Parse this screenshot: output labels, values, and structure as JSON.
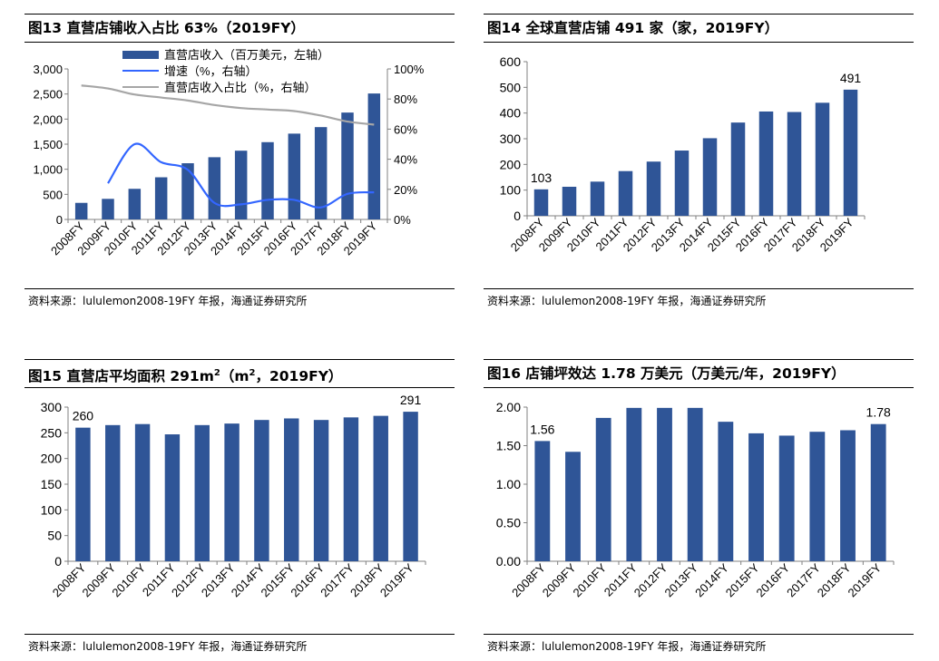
{
  "panels": [
    {
      "title": "图13 直营店铺收入占比 63%（2019FY）",
      "source": "资料来源：lululemon2008-19FY 年报，海通证券研究所",
      "chart_data": {
        "type": "bar+line",
        "categories": [
          "2008FY",
          "2009FY",
          "2010FY",
          "2011FY",
          "2012FY",
          "2013FY",
          "2014FY",
          "2015FY",
          "2016FY",
          "2017FY",
          "2018FY",
          "2019FY"
        ],
        "bars": {
          "name": "直营店收入（百万美元，左轴）",
          "color": "#2F5597",
          "values": [
            330,
            410,
            610,
            840,
            1120,
            1240,
            1370,
            1540,
            1710,
            1840,
            2130,
            2510
          ]
        },
        "lines": [
          {
            "name": "增速（%，右轴）",
            "color": "#3366FF",
            "values": [
              null,
              24,
              50,
              38,
              33,
              11,
              10,
              13,
              13,
              8,
              17,
              18
            ]
          },
          {
            "name": "直营店收入占比（%，右轴）",
            "color": "#A6A6A6",
            "values": [
              89,
              87,
              83,
              81,
              79,
              76,
              74,
              73,
              72,
              69,
              65,
              63
            ]
          }
        ],
        "y_left": {
          "min": 0,
          "max": 3000,
          "ticks": [
            0,
            500,
            1000,
            1500,
            2000,
            2500,
            3000
          ],
          "labels": [
            "0",
            "500",
            "1,000",
            "1,500",
            "2,000",
            "2,500",
            "3,000"
          ]
        },
        "y_right": {
          "min": 0,
          "max": 100,
          "ticks": [
            0,
            20,
            40,
            60,
            80,
            100
          ],
          "labels": [
            "0%",
            "20%",
            "40%",
            "60%",
            "80%",
            "100%"
          ]
        },
        "legend": "top-right"
      }
    },
    {
      "title": "图14 全球直营店铺 491 家（家，2019FY）",
      "source": "资料来源：lululemon2008-19FY 年报，海通证券研究所",
      "chart_data": {
        "type": "bar",
        "categories": [
          "2008FY",
          "2009FY",
          "2010FY",
          "2011FY",
          "2012FY",
          "2013FY",
          "2014FY",
          "2015FY",
          "2016FY",
          "2017FY",
          "2018FY",
          "2019FY"
        ],
        "values": [
          103,
          113,
          133,
          174,
          211,
          254,
          302,
          363,
          406,
          404,
          440,
          491
        ],
        "color": "#2F5597",
        "labels": {
          "0": "103",
          "11": "491"
        },
        "y": {
          "min": 0,
          "max": 600,
          "ticks": [
            0,
            100,
            200,
            300,
            400,
            500,
            600
          ],
          "labels": [
            "0",
            "100",
            "200",
            "300",
            "400",
            "500",
            "600"
          ]
        }
      }
    },
    {
      "title": "图15 直营店平均面积 291m²（m²，2019FY）",
      "source": "资料来源：lululemon2008-19FY 年报，海通证券研究所",
      "chart_data": {
        "type": "bar",
        "categories": [
          "2008FY",
          "2009FY",
          "2010FY",
          "2011FY",
          "2012FY",
          "2013FY",
          "2014FY",
          "2015FY",
          "2016FY",
          "2017FY",
          "2018FY",
          "2019FY"
        ],
        "values": [
          260,
          265,
          267,
          247,
          265,
          268,
          275,
          278,
          275,
          280,
          283,
          291
        ],
        "color": "#2F5597",
        "labels": {
          "0": "260",
          "11": "291"
        },
        "y": {
          "min": 0,
          "max": 300,
          "ticks": [
            0,
            50,
            100,
            150,
            200,
            250,
            300
          ],
          "labels": [
            "0",
            "50",
            "100",
            "150",
            "200",
            "250",
            "300"
          ]
        }
      }
    },
    {
      "title": "图16 店铺坪效达 1.78 万美元（万美元/年，2019FY）",
      "source": "资料来源：lululemon2008-19FY 年报，海通证券研究所",
      "chart_data": {
        "type": "bar",
        "categories": [
          "2008FY",
          "2009FY",
          "2010FY",
          "2011FY",
          "2012FY",
          "2013FY",
          "2014FY",
          "2015FY",
          "2016FY",
          "2017FY",
          "2018FY",
          "2019FY"
        ],
        "values": [
          1.56,
          1.42,
          1.86,
          1.99,
          1.99,
          1.99,
          1.81,
          1.66,
          1.63,
          1.68,
          1.7,
          1.78
        ],
        "color": "#2F5597",
        "labels": {
          "0": "1.56",
          "11": "1.78"
        },
        "y": {
          "min": 0,
          "max": 2.0,
          "ticks": [
            0,
            0.5,
            1.0,
            1.5,
            2.0
          ],
          "labels": [
            "0.00",
            "0.50",
            "1.00",
            "1.50",
            "2.00"
          ]
        }
      }
    }
  ]
}
